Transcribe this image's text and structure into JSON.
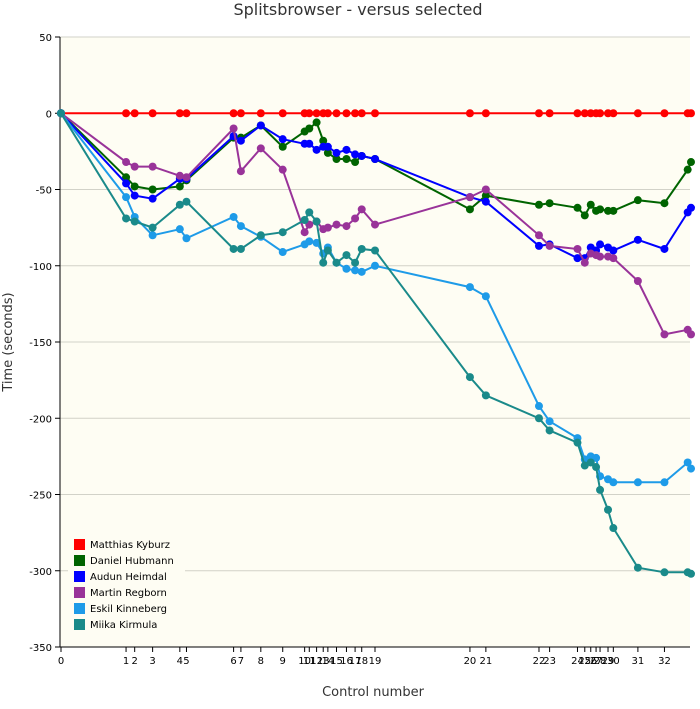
{
  "chart_data": {
    "type": "line",
    "title": "Splitsbrowser - versus selected",
    "xlabel": "Control number",
    "ylabel": "Time (seconds)",
    "ylim": [
      -350,
      50
    ],
    "yticks": [
      50,
      0,
      -50,
      -100,
      -150,
      -200,
      -250,
      -300,
      -350
    ],
    "grid": true,
    "legend_position": "bottom-left",
    "x_controls": [
      0,
      9.8,
      11.1,
      13.8,
      17.9,
      18.9,
      26.0,
      27.1,
      30.1,
      33.4,
      36.7,
      37.4,
      38.5,
      39.5,
      40.2,
      41.5,
      43.0,
      44.3,
      45.3,
      47.3,
      61.6,
      64.0,
      72.0,
      73.6,
      77.8,
      78.9,
      79.8,
      80.6,
      81.2,
      82.4,
      83.2,
      86.9,
      90.9,
      94.4,
      94.9
    ],
    "x_tick_labels": [
      "0",
      "1",
      "2",
      "3",
      "4",
      "5",
      "6",
      "7",
      "8",
      "9",
      "10",
      "11",
      "12",
      "13",
      "14",
      "15",
      "16",
      "17",
      "18",
      "19",
      "20",
      "21",
      "22",
      "23",
      "24",
      "25",
      "26",
      "27",
      "28",
      "29",
      "30",
      "31",
      "32"
    ],
    "series": [
      {
        "name": "Matthias Kyburz",
        "color": "#ff0000",
        "values": [
          0,
          0,
          0,
          0,
          0,
          0,
          0,
          0,
          0,
          0,
          0,
          0,
          0,
          0,
          0,
          0,
          0,
          0,
          0,
          0,
          0,
          0,
          0,
          0,
          0,
          0,
          0,
          0,
          0,
          0,
          0,
          0,
          0,
          0,
          0
        ]
      },
      {
        "name": "Daniel Hubmann",
        "color": "#006400",
        "values": [
          0,
          -42,
          -48,
          -50,
          -48,
          -44,
          -16,
          -16,
          -8,
          -22,
          -12,
          -10,
          -6,
          -18,
          -26,
          -30,
          -30,
          -32,
          -28,
          -30,
          -63,
          -54,
          -60,
          -59,
          -62,
          -67,
          -60,
          -64,
          -63,
          -64,
          -64,
          -57,
          -59,
          -37,
          -32
        ]
      },
      {
        "name": "Audun Heimdal",
        "color": "#0000ff",
        "values": [
          0,
          -46,
          -54,
          -56,
          -43,
          -43,
          -15,
          -18,
          -8,
          -17,
          -20,
          -20,
          -24,
          -22,
          -22,
          -26,
          -24,
          -27,
          -28,
          -30,
          -55,
          -58,
          -87,
          -86,
          -95,
          -95,
          -88,
          -90,
          -86,
          -88,
          -90,
          -83,
          -89,
          -65,
          -62
        ]
      },
      {
        "name": "Martin Regborn",
        "color": "#993399",
        "values": [
          0,
          -32,
          -35,
          -35,
          -41,
          -42,
          -10,
          -38,
          -23,
          -37,
          -78,
          -73,
          -71,
          -76,
          -75,
          -73,
          -74,
          -69,
          -63,
          -73,
          -55,
          -50,
          -80,
          -87,
          -89,
          -98,
          -92,
          -93,
          -94,
          -94,
          -95,
          -110,
          -145,
          -142,
          -145
        ]
      },
      {
        "name": "Eskil Kinneberg",
        "color": "#1e9be8",
        "values": [
          0,
          -55,
          -68,
          -80,
          -76,
          -82,
          -68,
          -74,
          -81,
          -91,
          -86,
          -84,
          -85,
          -92,
          -88,
          -98,
          -102,
          -103,
          -104,
          -100,
          -114,
          -120,
          -192,
          -202,
          -213,
          -227,
          -225,
          -226,
          -238,
          -240,
          -242,
          -242,
          -242,
          -229,
          -233
        ]
      },
      {
        "name": "Miika Kirmula",
        "color": "#1a8a8a",
        "values": [
          0,
          -69,
          -71,
          -75,
          -60,
          -58,
          -89,
          -89,
          -80,
          -78,
          -70,
          -65,
          -71,
          -98,
          -90,
          -98,
          -93,
          -98,
          -89,
          -90,
          -173,
          -185,
          -200,
          -208,
          -216,
          -231,
          -229,
          -232,
          -247,
          -260,
          -272,
          -298,
          -301,
          -301,
          -302
        ]
      }
    ]
  }
}
